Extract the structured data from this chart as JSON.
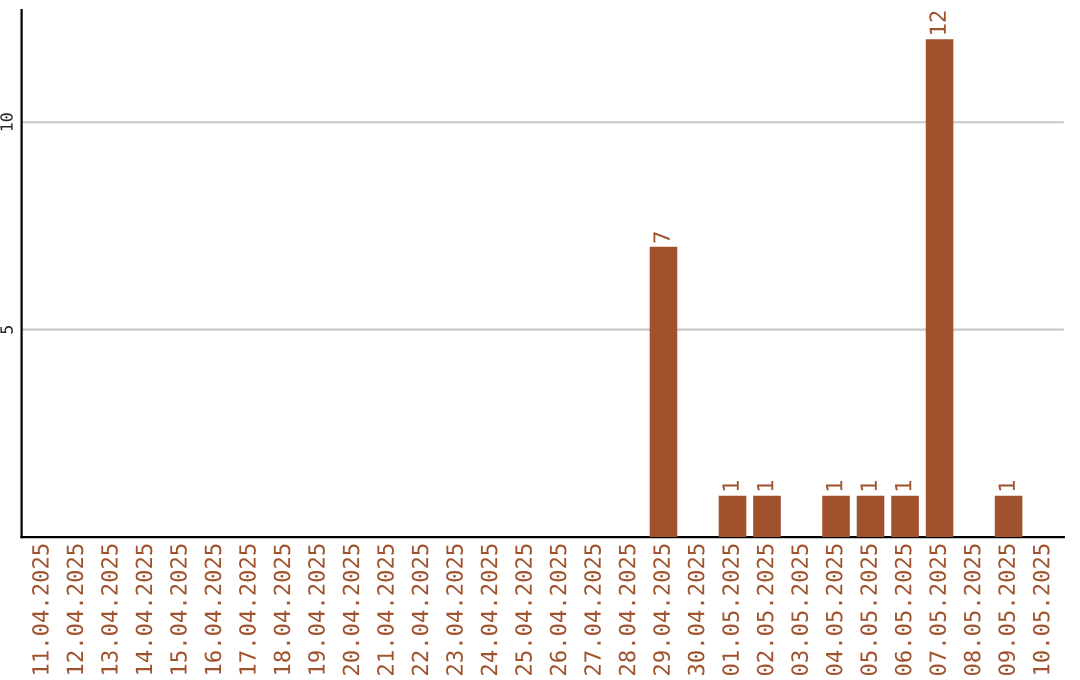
{
  "chart_data": {
    "type": "bar",
    "categories": [
      "11.04.2025",
      "12.04.2025",
      "13.04.2025",
      "14.04.2025",
      "15.04.2025",
      "16.04.2025",
      "17.04.2025",
      "18.04.2025",
      "19.04.2025",
      "20.04.2025",
      "21.04.2025",
      "22.04.2025",
      "23.04.2025",
      "24.04.2025",
      "25.04.2025",
      "26.04.2025",
      "27.04.2025",
      "28.04.2025",
      "29.04.2025",
      "30.04.2025",
      "01.05.2025",
      "02.05.2025",
      "03.05.2025",
      "04.05.2025",
      "05.05.2025",
      "06.05.2025",
      "07.05.2025",
      "08.05.2025",
      "09.05.2025",
      "10.05.2025"
    ],
    "values": [
      0,
      0,
      0,
      0,
      0,
      0,
      0,
      0,
      0,
      0,
      0,
      0,
      0,
      0,
      0,
      0,
      0,
      0,
      7,
      0,
      1,
      1,
      0,
      1,
      1,
      1,
      12,
      0,
      1,
      0
    ],
    "value_labels": [
      null,
      null,
      null,
      null,
      null,
      null,
      null,
      null,
      null,
      null,
      null,
      null,
      null,
      null,
      null,
      null,
      null,
      null,
      "7",
      null,
      "1",
      "1",
      null,
      "1",
      "1",
      "1",
      "12",
      null,
      "1",
      null
    ],
    "color": "#a0522d",
    "ylim": [
      0,
      12.7
    ],
    "yticks": [
      5,
      10
    ],
    "grid": "y"
  }
}
